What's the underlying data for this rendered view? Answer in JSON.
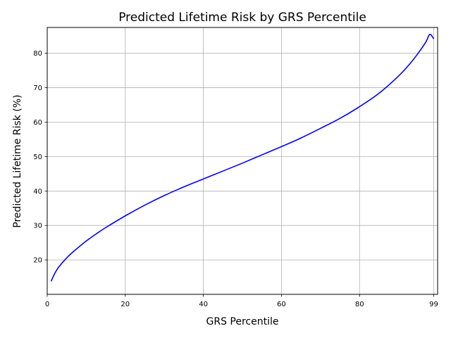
{
  "chart_data": {
    "type": "line",
    "title": "Predicted Lifetime Risk by GRS Percentile",
    "xlabel": "GRS Percentile",
    "ylabel": "Predicted Lifetime Risk (%)",
    "xlim": [
      0,
      100
    ],
    "ylim": [
      10.0,
      87.5
    ],
    "xticks": [
      0,
      20,
      40,
      60,
      80,
      99
    ],
    "yticks": [
      20,
      30,
      40,
      50,
      60,
      70,
      80
    ],
    "grid": true,
    "line_color": "#0000ff",
    "series": [
      {
        "x": [
          1,
          2,
          3,
          5,
          7,
          10,
          13,
          15,
          20,
          25,
          30,
          35,
          40,
          45,
          50,
          55,
          60,
          65,
          70,
          75,
          80,
          85,
          90,
          93,
          95,
          97,
          98,
          99
        ],
        "y": [
          13.8,
          16.2,
          18.0,
          20.6,
          22.7,
          25.5,
          27.9,
          29.4,
          32.8,
          35.9,
          38.7,
          41.2,
          43.5,
          45.8,
          48.1,
          50.5,
          52.9,
          55.4,
          58.2,
          61.1,
          64.5,
          68.4,
          73.4,
          77.1,
          80.0,
          83.3,
          85.5,
          84.2
        ]
      }
    ]
  }
}
